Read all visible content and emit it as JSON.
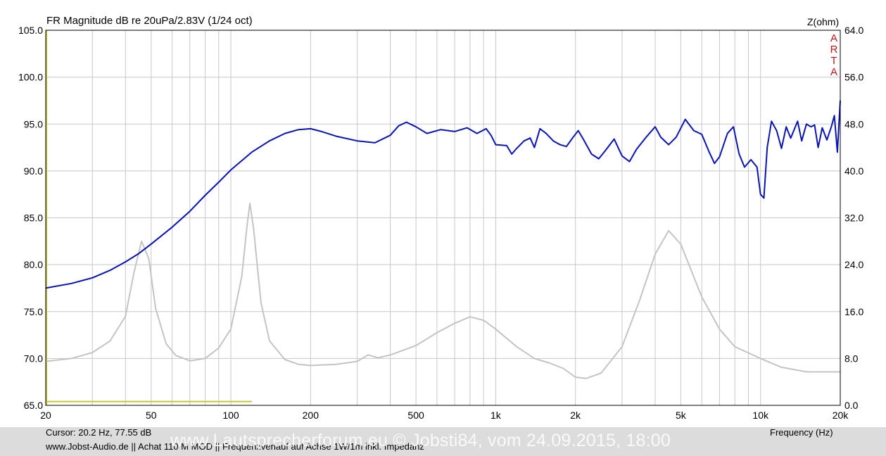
{
  "header": {
    "left_title": "FR Magnitude dB re 20uPa/2.83V (1/24 oct)",
    "right_title": "Z(ohm)",
    "logo": [
      "A",
      "R",
      "T",
      "A"
    ]
  },
  "footer": {
    "cursor": "Cursor: 20.2 Hz, 77.55 dB",
    "xlabel": "Frequency (Hz)",
    "info_line": "www.Jobst-Audio.de  ||  Achat 110 M MOD  ||  Frequenzverlauf auf Achse  1W/1m  inkl. Impedanz",
    "watermark": "www.Lautsprecherforum.eu © Jobsti84, vom 24.09.2015, 18:00"
  },
  "colors": {
    "spl": "#0a14b4",
    "impedance": "#c4c4c4",
    "marker": "#c8c832",
    "grid": "#c8c8c8",
    "logo": "#c01818",
    "footer_bg": "#dcdcdc"
  },
  "chart_data": {
    "type": "line",
    "title": "FR Magnitude dB re 20uPa/2.83V (1/24 oct)",
    "xlabel": "Frequency (Hz)",
    "ylabel": "",
    "y2label": "Z(ohm)",
    "xscale": "log",
    "xlim": [
      20,
      20000
    ],
    "ylim": [
      65,
      105
    ],
    "y2lim": [
      0,
      64
    ],
    "grid": true,
    "x_ticks": [
      {
        "v": 20,
        "label": "20"
      },
      {
        "v": 50,
        "label": "50"
      },
      {
        "v": 100,
        "label": "100"
      },
      {
        "v": 200,
        "label": "200"
      },
      {
        "v": 500,
        "label": "500"
      },
      {
        "v": 1000,
        "label": "1k"
      },
      {
        "v": 2000,
        "label": "2k"
      },
      {
        "v": 5000,
        "label": "5k"
      },
      {
        "v": 10000,
        "label": "10k"
      },
      {
        "v": 20000,
        "label": "20k"
      }
    ],
    "y_ticks": [
      "105.0",
      "100.0",
      "95.0",
      "90.0",
      "85.0",
      "80.0",
      "75.0",
      "70.0",
      "65.0"
    ],
    "y2_ticks": [
      "64.0",
      "56.0",
      "48.0",
      "40.0",
      "32.0",
      "24.0",
      "16.0",
      "8.0",
      "0.0"
    ],
    "series": [
      {
        "axis": "left",
        "color": "#0a14b4",
        "points": [
          [
            20,
            77.5
          ],
          [
            25,
            78
          ],
          [
            30,
            78.6
          ],
          [
            35,
            79.4
          ],
          [
            40,
            80.3
          ],
          [
            45,
            81.2
          ],
          [
            50,
            82.2
          ],
          [
            60,
            84
          ],
          [
            70,
            85.7
          ],
          [
            80,
            87.4
          ],
          [
            90,
            88.8
          ],
          [
            100,
            90.1
          ],
          [
            120,
            92
          ],
          [
            140,
            93.2
          ],
          [
            160,
            94
          ],
          [
            180,
            94.4
          ],
          [
            200,
            94.5
          ],
          [
            220,
            94.2
          ],
          [
            250,
            93.7
          ],
          [
            300,
            93.2
          ],
          [
            350,
            93
          ],
          [
            400,
            93.8
          ],
          [
            430,
            94.8
          ],
          [
            460,
            95.2
          ],
          [
            500,
            94.7
          ],
          [
            550,
            94
          ],
          [
            620,
            94.4
          ],
          [
            700,
            94.2
          ],
          [
            780,
            94.6
          ],
          [
            850,
            94
          ],
          [
            920,
            94.5
          ],
          [
            960,
            93.8
          ],
          [
            1000,
            92.8
          ],
          [
            1100,
            92.7
          ],
          [
            1150,
            91.8
          ],
          [
            1200,
            92.4
          ],
          [
            1280,
            93.2
          ],
          [
            1350,
            93.5
          ],
          [
            1400,
            92.5
          ],
          [
            1470,
            94.5
          ],
          [
            1550,
            94
          ],
          [
            1650,
            93.2
          ],
          [
            1750,
            92.8
          ],
          [
            1850,
            92.6
          ],
          [
            1950,
            93.5
          ],
          [
            2050,
            94.3
          ],
          [
            2150,
            93.3
          ],
          [
            2300,
            91.8
          ],
          [
            2450,
            91.3
          ],
          [
            2600,
            92.2
          ],
          [
            2800,
            93.4
          ],
          [
            3000,
            91.6
          ],
          [
            3200,
            91
          ],
          [
            3400,
            92.3
          ],
          [
            3700,
            93.6
          ],
          [
            4000,
            94.7
          ],
          [
            4200,
            93.6
          ],
          [
            4500,
            92.8
          ],
          [
            4800,
            93.6
          ],
          [
            5200,
            95.5
          ],
          [
            5600,
            94.3
          ],
          [
            6000,
            93.9
          ],
          [
            6400,
            92
          ],
          [
            6700,
            90.8
          ],
          [
            7000,
            91.5
          ],
          [
            7500,
            94
          ],
          [
            7900,
            94.7
          ],
          [
            8300,
            91.8
          ],
          [
            8700,
            90.4
          ],
          [
            9200,
            91.2
          ],
          [
            9700,
            90.4
          ],
          [
            10000,
            87.5
          ],
          [
            10300,
            87.1
          ],
          [
            10600,
            92.5
          ],
          [
            11000,
            95.3
          ],
          [
            11500,
            94.3
          ],
          [
            12000,
            92.4
          ],
          [
            12500,
            94.7
          ],
          [
            13000,
            93.5
          ],
          [
            13800,
            95.3
          ],
          [
            14300,
            93.2
          ],
          [
            14900,
            95
          ],
          [
            15500,
            94.7
          ],
          [
            16000,
            94.9
          ],
          [
            16500,
            92.5
          ],
          [
            17100,
            94.6
          ],
          [
            17800,
            93.3
          ],
          [
            18500,
            94.7
          ],
          [
            19000,
            95.9
          ],
          [
            19500,
            92
          ],
          [
            20000,
            97.5
          ]
        ]
      },
      {
        "axis": "right",
        "color": "#c4c4c4",
        "points": [
          [
            20,
            7.5
          ],
          [
            25,
            8
          ],
          [
            30,
            9
          ],
          [
            35,
            11
          ],
          [
            40,
            15.2
          ],
          [
            43,
            22.5
          ],
          [
            46,
            28
          ],
          [
            49,
            25
          ],
          [
            52,
            16.5
          ],
          [
            57,
            10.5
          ],
          [
            62,
            8.5
          ],
          [
            70,
            7.6
          ],
          [
            80,
            8
          ],
          [
            90,
            9.8
          ],
          [
            100,
            13
          ],
          [
            110,
            22
          ],
          [
            115,
            30.5
          ],
          [
            118,
            34.5
          ],
          [
            122,
            30
          ],
          [
            130,
            17.5
          ],
          [
            140,
            11
          ],
          [
            160,
            7.8
          ],
          [
            180,
            7
          ],
          [
            200,
            6.8
          ],
          [
            250,
            7
          ],
          [
            300,
            7.5
          ],
          [
            330,
            8.6
          ],
          [
            360,
            8.1
          ],
          [
            400,
            8.6
          ],
          [
            500,
            10.2
          ],
          [
            600,
            12.4
          ],
          [
            700,
            14
          ],
          [
            800,
            15.1
          ],
          [
            900,
            14.5
          ],
          [
            1000,
            13
          ],
          [
            1200,
            10
          ],
          [
            1400,
            8
          ],
          [
            1600,
            7.2
          ],
          [
            1800,
            6.3
          ],
          [
            2000,
            4.8
          ],
          [
            2200,
            4.6
          ],
          [
            2500,
            5.5
          ],
          [
            3000,
            10
          ],
          [
            3500,
            18
          ],
          [
            4000,
            25.8
          ],
          [
            4500,
            29.8
          ],
          [
            5000,
            27.5
          ],
          [
            6000,
            18.5
          ],
          [
            7000,
            13
          ],
          [
            8000,
            10
          ],
          [
            10000,
            8
          ],
          [
            12000,
            6.5
          ],
          [
            15000,
            5.7
          ],
          [
            20000,
            5.7
          ]
        ]
      }
    ],
    "marker_line": {
      "color": "#c8c832",
      "from": 20,
      "to": 120,
      "level": 65.4
    }
  }
}
